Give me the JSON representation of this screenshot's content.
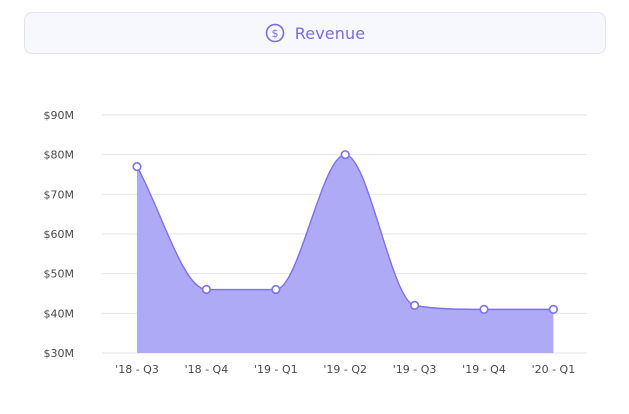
{
  "header": {
    "icon": "dollar-circle-icon",
    "label": "Revenue",
    "accent_color": "#7b6ce0"
  },
  "chart_data": {
    "type": "area",
    "title": "Revenue",
    "xlabel": "",
    "ylabel": "",
    "categories": [
      "'18 - Q3",
      "'18 - Q4",
      "'19 - Q1",
      "'19 - Q2",
      "'19 - Q3",
      "'19 - Q4",
      "'20 - Q1"
    ],
    "series": [
      {
        "values": [
          77,
          46,
          46,
          80,
          42,
          41,
          41
        ],
        "color": "#7a72e8",
        "fill": "#aeaaf6"
      }
    ],
    "ylim": [
      30,
      90
    ],
    "yticks": [
      30,
      40,
      50,
      60,
      70,
      80,
      90
    ],
    "ytick_labels": [
      "$30M",
      "$40M",
      "$50M",
      "$60M",
      "$70M",
      "$80M",
      "$90M"
    ],
    "grid": true,
    "legend": "none",
    "smooth": true,
    "markers": true
  }
}
